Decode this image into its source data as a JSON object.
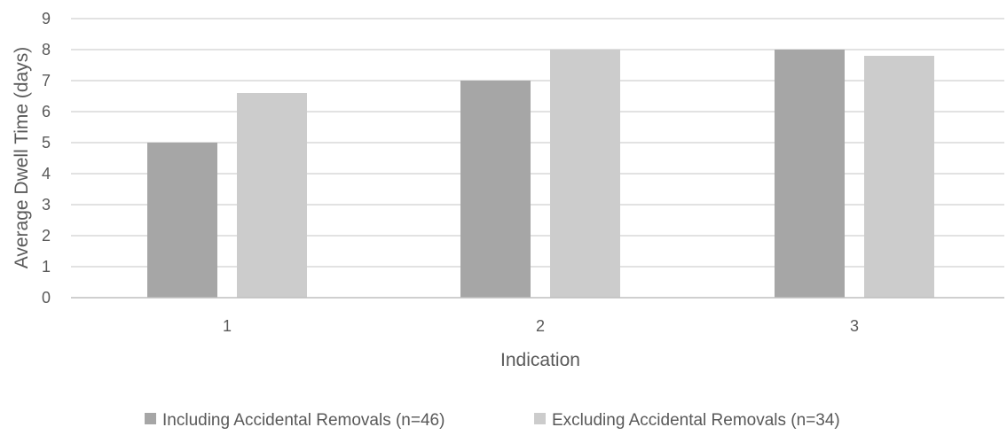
{
  "chart_data": {
    "type": "bar",
    "title": "",
    "xlabel": "Indication",
    "ylabel": "Average Dwell Time (days)",
    "categories": [
      "1",
      "2",
      "3"
    ],
    "ylim": [
      0,
      9
    ],
    "yticks": [
      "0",
      "1",
      "2",
      "3",
      "4",
      "5",
      "6",
      "7",
      "8",
      "9"
    ],
    "grid": true,
    "legend_position": "bottom",
    "series": [
      {
        "name": "Including Accidental Removals (n=46)",
        "values": [
          5,
          7,
          8
        ],
        "color": "#a6a6a6"
      },
      {
        "name": "Excluding Accidental Removals (n=34)",
        "values": [
          6.6,
          8,
          7.8
        ],
        "color": "#cccccc"
      }
    ],
    "colors": {
      "gridline": "#d9d9d9",
      "axis": "#bfbfbf",
      "text": "#595959"
    }
  }
}
